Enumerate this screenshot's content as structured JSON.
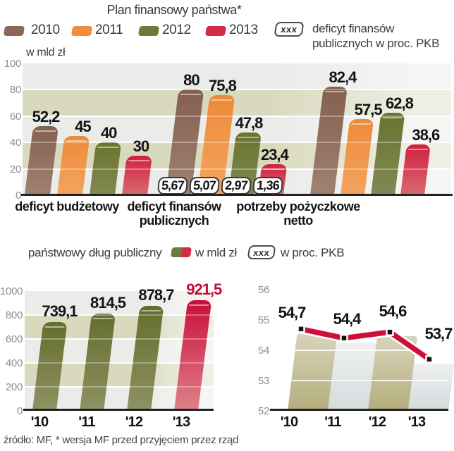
{
  "title": "Plan finansowy państwa*",
  "legend": {
    "years": [
      {
        "label": "2010",
        "key": "brown"
      },
      {
        "label": "2011",
        "key": "orange"
      },
      {
        "label": "2012",
        "key": "olive"
      },
      {
        "label": "2013",
        "key": "red"
      }
    ],
    "badge": "xxx",
    "caption": [
      "deficyt finansów",
      "publicznych w proc. PKB"
    ]
  },
  "mid_legend": {
    "label": "państwowy dług publiczny",
    "unit1": "w mld zł",
    "badge": "xxx",
    "unit2": "w proc. PKB"
  },
  "footer": "źródło: MF, * wersja MF przed przyjęciem przez rząd",
  "palette": {
    "brown": {
      "swatch": "#8a6757",
      "top": "#84604f",
      "bottom": "#a08172"
    },
    "orange": {
      "swatch": "#ef8c3e",
      "top": "#ee8a3a",
      "bottom": "#f2a55f"
    },
    "olive": {
      "swatch": "#6e7b38",
      "top": "#68742f",
      "bottom": "#828952"
    },
    "red": {
      "swatch": "#d22b45",
      "top": "#d21f40",
      "bottom": "#d96a72"
    },
    "olive_debt": {
      "swatch": "#6e7b38",
      "top": "#646d2c",
      "bottom": "#8f9263"
    },
    "red_debt": {
      "swatch": "#d22b45",
      "top": "#c90e3a",
      "bottom": "#df8289"
    },
    "ghost_khaki": {
      "top": "#d8d4bb",
      "bottom": "#b4ad7c"
    },
    "ghost_gray": {
      "top": "#eff1f0",
      "bottom": "#d5dadd"
    },
    "band_light": "#eaecea",
    "band_light_fade": "#f5f5f3",
    "band_beige": "#d9dabd",
    "band_beige_fade": "#efefe6",
    "line": "#ce0f3a",
    "marker": "#151515",
    "label_red": "#c40b38"
  },
  "chart_data": [
    {
      "type": "bar",
      "title": "Plan finansowy państwa*",
      "ylabel": "w mld zł",
      "ylim": [
        0,
        100
      ],
      "yticks_display": [
        "100",
        "80",
        "60",
        "40",
        "20",
        "0"
      ],
      "categories": [
        "deficyt budżetowy",
        "deficyt finansów publicznych",
        "potrzeby pożyczkowe netto"
      ],
      "category_lines": [
        [
          "deficyt budżetowy"
        ],
        [
          "deficyt finansów",
          "publicznych"
        ],
        [
          "potrzeby pożyczkowe",
          "netto"
        ]
      ],
      "series": [
        {
          "name": "2010",
          "key": "brown",
          "values": [
            52.2,
            80.0,
            82.4
          ],
          "labels": [
            "52,2",
            "80",
            "82,4"
          ]
        },
        {
          "name": "2011",
          "key": "orange",
          "values": [
            45.0,
            75.8,
            57.5
          ],
          "labels": [
            "45",
            "75,8",
            "57,5"
          ]
        },
        {
          "name": "2012",
          "key": "olive",
          "values": [
            40.0,
            47.8,
            62.8
          ],
          "labels": [
            "40",
            "47,8",
            "62,8"
          ]
        },
        {
          "name": "2013",
          "key": "red",
          "values": [
            30.0,
            23.4,
            38.6
          ],
          "labels": [
            "30",
            "23,4",
            "38,6"
          ]
        }
      ],
      "badges": {
        "group": "deficyt finansów publicznych",
        "legend": "deficyt finansów publicznych w proc. PKB",
        "values": [
          "5,67",
          "5,07",
          "2,97",
          "1,36"
        ]
      },
      "grid": true,
      "legend_position": "top"
    },
    {
      "type": "bar",
      "title": "państwowy dług publiczny",
      "ylabel": "w mld zł",
      "ylim": [
        0,
        1000
      ],
      "yticks_display": [
        "1000",
        "800",
        "600",
        "400",
        "200",
        "0"
      ],
      "categories": [
        "'10",
        "'11",
        "'12",
        "'13"
      ],
      "values": [
        739.1,
        814.5,
        878.7,
        921.5
      ],
      "labels": [
        "739,1",
        "814,5",
        "878,7",
        "921,5"
      ],
      "bar_keys": [
        "olive_debt",
        "olive_debt",
        "olive_debt",
        "red_debt"
      ],
      "highlight_last_label": true,
      "grid": true
    },
    {
      "type": "line",
      "title": "państwowy dług publiczny w proc. PKB",
      "ylabel": "w proc. PKB",
      "ylim": [
        52,
        56
      ],
      "yticks_display": [
        "56",
        "55",
        "54",
        "53",
        "52"
      ],
      "categories": [
        "'10",
        "'11",
        "'12",
        "'13"
      ],
      "values": [
        54.7,
        54.4,
        54.6,
        53.7
      ],
      "labels": [
        "54,7",
        "54,4",
        "54,6",
        "53,7"
      ],
      "ghost_column_keys": [
        "ghost_khaki",
        "ghost_gray",
        "ghost_khaki",
        "ghost_gray"
      ],
      "grid": true
    }
  ]
}
